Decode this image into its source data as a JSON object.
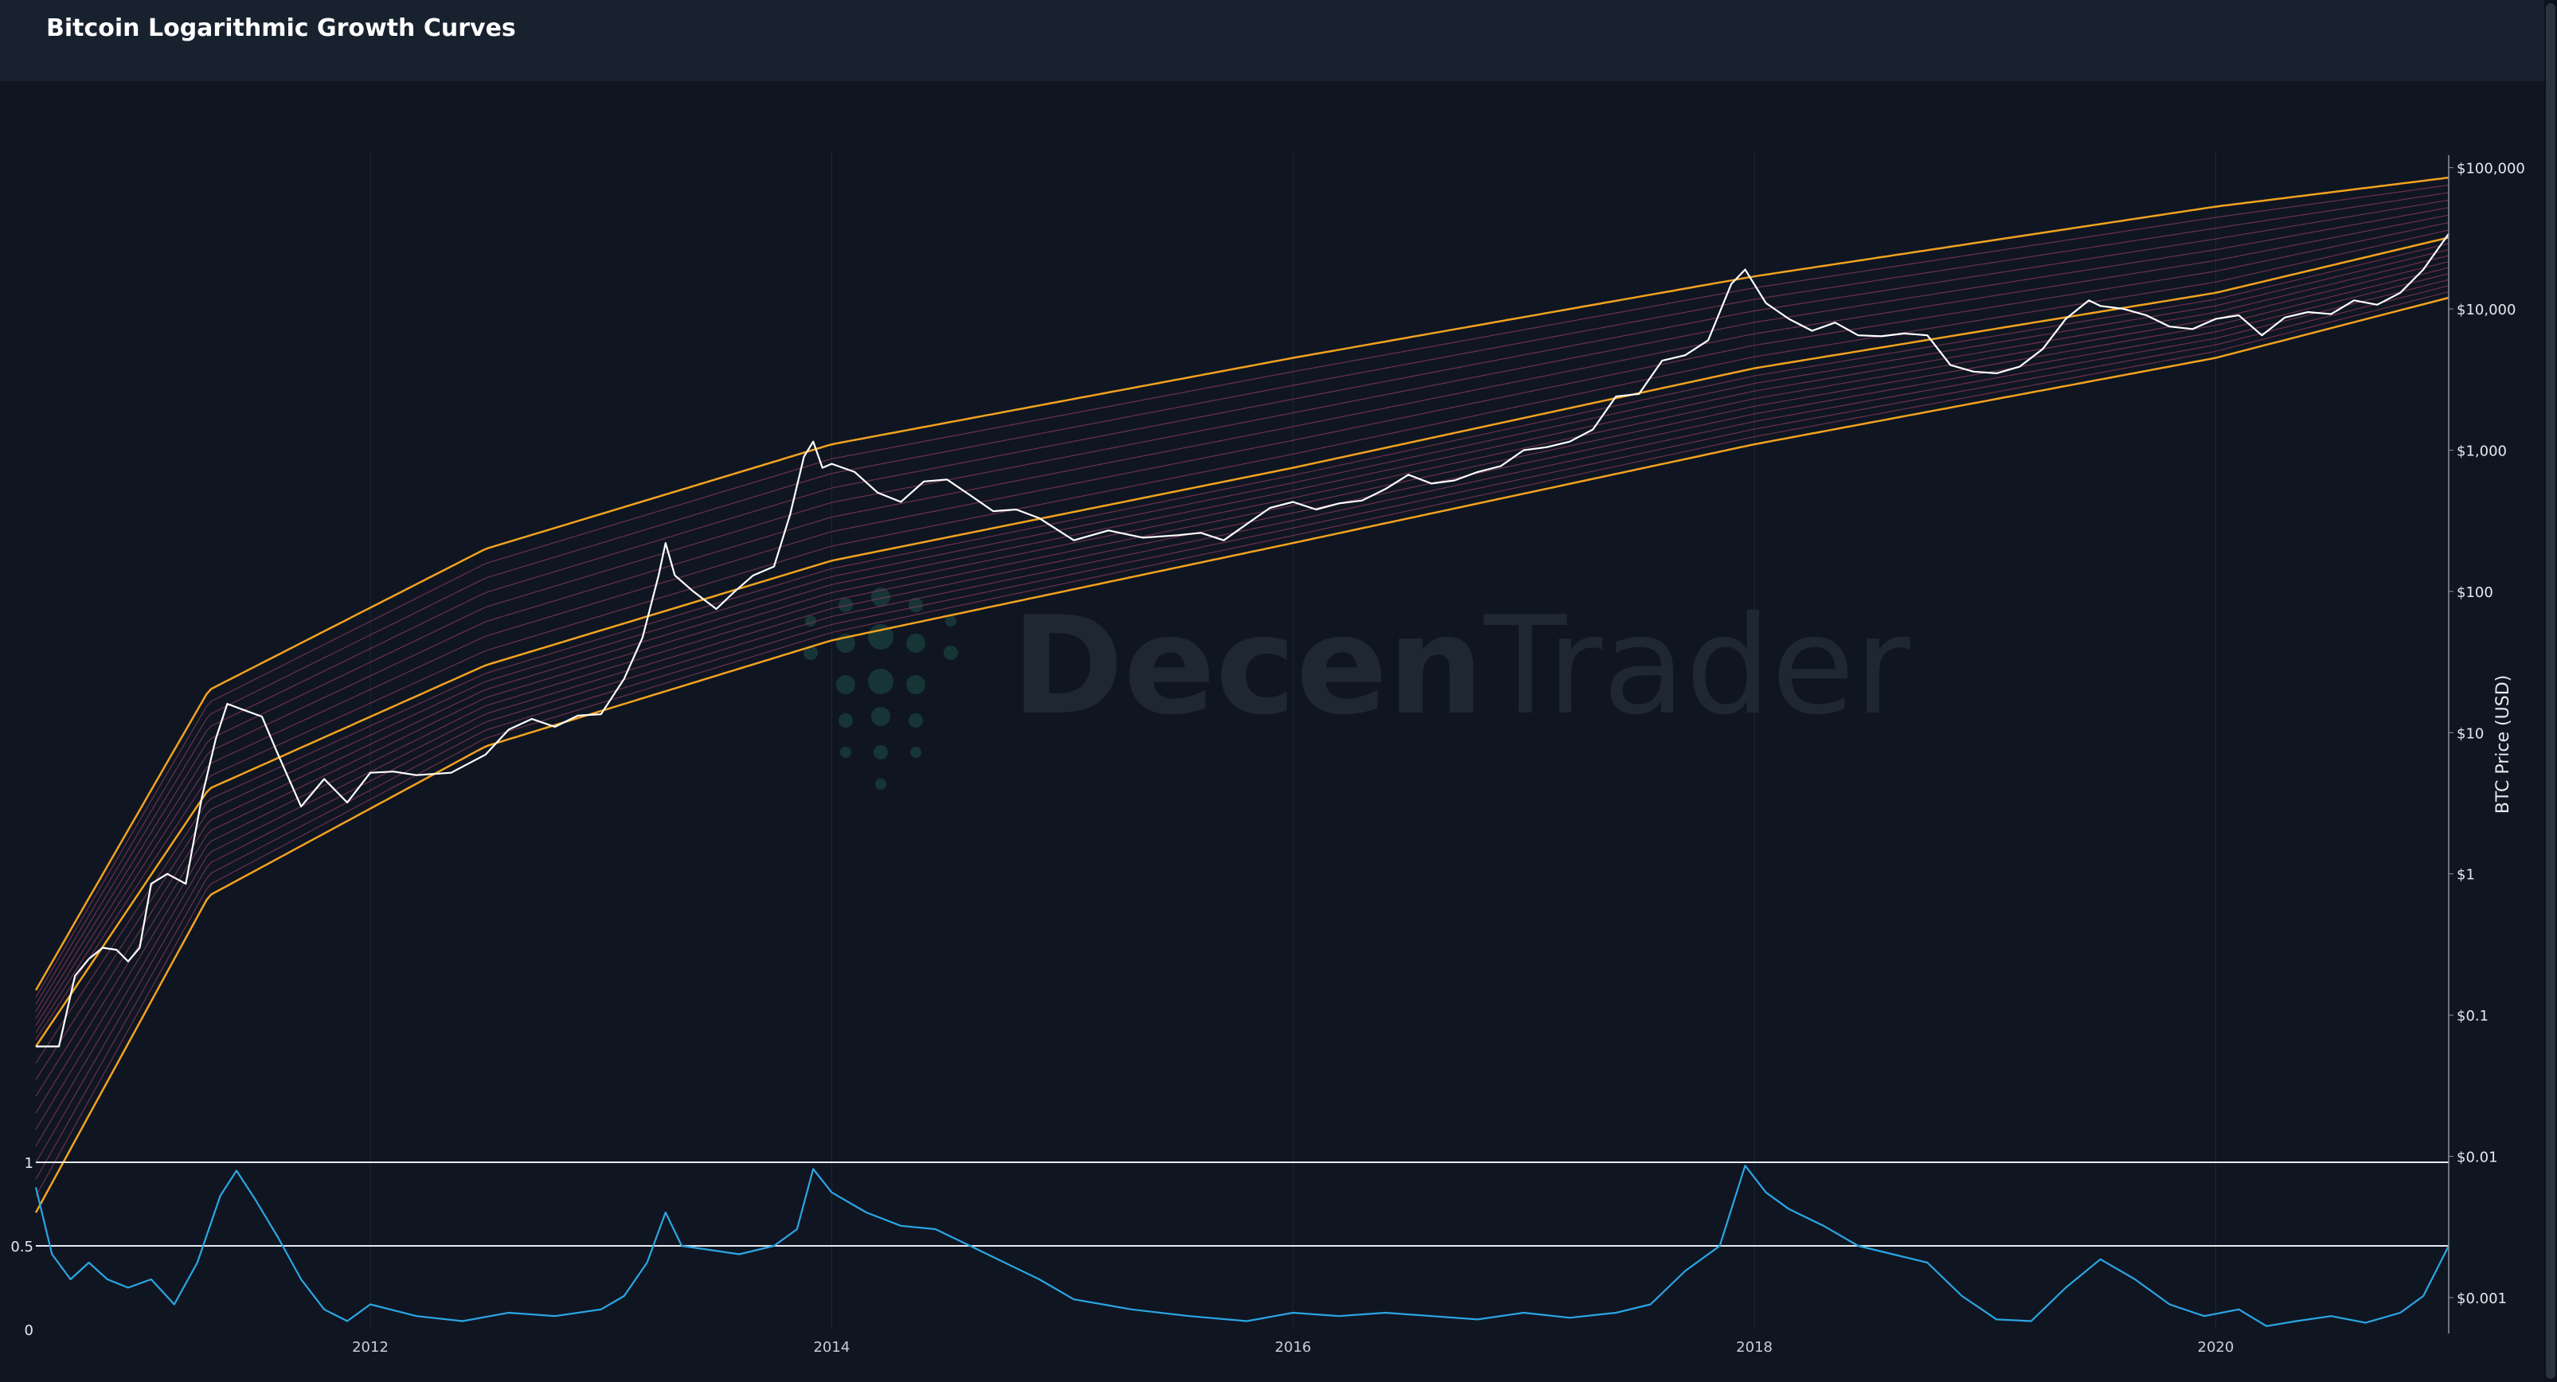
{
  "app": {
    "title": "Bitcoin Logarithmic Growth Curves"
  },
  "watermark": {
    "text_bold": "Decen",
    "text_light": "Trader"
  },
  "colors": {
    "background": "#0f1622",
    "header": "#18222f",
    "band_orange": "#f3a21f",
    "band_pink": "#8c3a5c",
    "price_line": "#ffffff",
    "oscillator": "#2ba6e4",
    "grid": "#1d2633",
    "watermark": "#1f2733",
    "watermark_dots": "#173536"
  },
  "chart_data": [
    {
      "type": "line",
      "title": "",
      "ylabel": "BTC Price (USD)",
      "yscale": "log",
      "ylim": [
        0.001,
        250000
      ],
      "x_ticks": [
        "2012",
        "2014",
        "2016",
        "2018",
        "2020"
      ],
      "x_range": [
        2010.55,
        2021.01
      ],
      "y_tick_labels": [
        "$100,000",
        "$10,000",
        "$1,000",
        "$100",
        "$10",
        "$1",
        "$0.1",
        "$0.01",
        "$0.001"
      ],
      "y_tick_values": [
        100000,
        10000,
        1000,
        100,
        10,
        1,
        0.1,
        0.01,
        0.001
      ],
      "series": [
        {
          "role": "price",
          "x": [
            2010.55,
            2010.65,
            2010.72,
            2010.78,
            2010.84,
            2010.9,
            2010.95,
            2011.0,
            2011.05,
            2011.12,
            2011.2,
            2011.27,
            2011.33,
            2011.38,
            2011.45,
            2011.53,
            2011.6,
            2011.7,
            2011.8,
            2011.9,
            2012.0,
            2012.1,
            2012.2,
            2012.35,
            2012.5,
            2012.6,
            2012.7,
            2012.8,
            2012.9,
            2013.0,
            2013.1,
            2013.18,
            2013.25,
            2013.28,
            2013.32,
            2013.4,
            2013.5,
            2013.58,
            2013.66,
            2013.75,
            2013.82,
            2013.88,
            2013.92,
            2013.96,
            2014.0,
            2014.1,
            2014.2,
            2014.3,
            2014.4,
            2014.5,
            2014.6,
            2014.7,
            2014.8,
            2014.9,
            2015.05,
            2015.2,
            2015.35,
            2015.5,
            2015.6,
            2015.7,
            2015.8,
            2015.9,
            2016.0,
            2016.1,
            2016.2,
            2016.3,
            2016.4,
            2016.5,
            2016.6,
            2016.7,
            2016.8,
            2016.9,
            2017.0,
            2017.1,
            2017.2,
            2017.3,
            2017.4,
            2017.5,
            2017.6,
            2017.7,
            2017.8,
            2017.9,
            2017.96,
            2018.05,
            2018.15,
            2018.25,
            2018.35,
            2018.45,
            2018.55,
            2018.65,
            2018.75,
            2018.85,
            2018.95,
            2019.05,
            2019.15,
            2019.25,
            2019.35,
            2019.45,
            2019.5,
            2019.6,
            2019.7,
            2019.8,
            2019.9,
            2020.0,
            2020.1,
            2020.2,
            2020.3,
            2020.4,
            2020.5,
            2020.6,
            2020.7,
            2020.8,
            2020.9,
            2021.01
          ],
          "y": [
            0.06,
            0.06,
            0.19,
            0.25,
            0.3,
            0.29,
            0.24,
            0.3,
            0.85,
            1,
            0.85,
            3.5,
            9,
            16,
            14.5,
            13,
            7,
            3,
            4.7,
            3.2,
            5.2,
            5.3,
            5,
            5.2,
            7,
            10.5,
            12.5,
            11,
            13.2,
            13.5,
            24,
            47,
            130,
            220,
            130,
            100,
            75,
            100,
            130,
            150,
            350,
            900,
            1150,
            750,
            800,
            700,
            500,
            430,
            600,
            620,
            480,
            370,
            380,
            330,
            230,
            270,
            240,
            250,
            260,
            230,
            300,
            390,
            430,
            380,
            420,
            440,
            530,
            670,
            580,
            610,
            700,
            770,
            1000,
            1050,
            1150,
            1400,
            2400,
            2500,
            4300,
            4700,
            6000,
            15000,
            19000,
            11000,
            8500,
            7000,
            8000,
            6500,
            6400,
            6700,
            6500,
            4000,
            3600,
            3500,
            3900,
            5200,
            8500,
            11500,
            10500,
            10000,
            9000,
            7500,
            7200,
            8500,
            9000,
            6500,
            8700,
            9500,
            9200,
            11500,
            10700,
            13000,
            19000,
            34000
          ]
        },
        {
          "role": "upper_band",
          "x": [
            2010.55,
            2011.3,
            2012.5,
            2014.0,
            2016.0,
            2018.0,
            2020.0,
            2021.01
          ],
          "y": [
            0.15,
            20,
            200,
            1100,
            4500,
            17000,
            53000,
            85000
          ]
        },
        {
          "role": "middle_band",
          "x": [
            2010.55,
            2011.3,
            2012.5,
            2014.0,
            2016.0,
            2018.0,
            2020.0,
            2021.01
          ],
          "y": [
            0.06,
            4,
            30,
            165,
            750,
            3800,
            13000,
            32000
          ]
        },
        {
          "role": "lower_band",
          "x": [
            2010.55,
            2011.3,
            2012.5,
            2014.0,
            2016.0,
            2018.0,
            2020.0,
            2021.01
          ],
          "y": [
            0.004,
            0.7,
            8,
            45,
            220,
            1100,
            4500,
            12000
          ]
        }
      ]
    },
    {
      "type": "line",
      "title": "",
      "ylim": [
        0,
        1
      ],
      "y_tick_labels": [
        "1",
        "0.5",
        "0"
      ],
      "y_tick_values": [
        1,
        0.5,
        0
      ],
      "series": [
        {
          "role": "oscillator",
          "x": [
            2010.55,
            2010.62,
            2010.7,
            2010.78,
            2010.86,
            2010.95,
            2011.05,
            2011.15,
            2011.25,
            2011.35,
            2011.42,
            2011.5,
            2011.6,
            2011.7,
            2011.8,
            2011.9,
            2012.0,
            2012.2,
            2012.4,
            2012.6,
            2012.8,
            2013.0,
            2013.1,
            2013.2,
            2013.28,
            2013.35,
            2013.45,
            2013.6,
            2013.75,
            2013.85,
            2013.92,
            2014.0,
            2014.15,
            2014.3,
            2014.45,
            2014.6,
            2014.75,
            2014.9,
            2015.05,
            2015.3,
            2015.55,
            2015.8,
            2016.0,
            2016.2,
            2016.4,
            2016.6,
            2016.8,
            2017.0,
            2017.2,
            2017.4,
            2017.55,
            2017.7,
            2017.85,
            2017.96,
            2018.05,
            2018.15,
            2018.3,
            2018.45,
            2018.6,
            2018.75,
            2018.9,
            2019.05,
            2019.2,
            2019.35,
            2019.5,
            2019.65,
            2019.8,
            2019.95,
            2020.1,
            2020.22,
            2020.35,
            2020.5,
            2020.65,
            2020.8,
            2020.9,
            2021.01
          ],
          "y": [
            0.85,
            0.45,
            0.3,
            0.4,
            0.3,
            0.25,
            0.3,
            0.15,
            0.4,
            0.8,
            0.95,
            0.78,
            0.55,
            0.3,
            0.12,
            0.05,
            0.15,
            0.08,
            0.05,
            0.1,
            0.08,
            0.12,
            0.2,
            0.4,
            0.7,
            0.5,
            0.48,
            0.45,
            0.5,
            0.6,
            0.96,
            0.82,
            0.7,
            0.62,
            0.6,
            0.5,
            0.4,
            0.3,
            0.18,
            0.12,
            0.08,
            0.05,
            0.1,
            0.08,
            0.1,
            0.08,
            0.06,
            0.1,
            0.07,
            0.1,
            0.15,
            0.35,
            0.5,
            0.98,
            0.82,
            0.72,
            0.62,
            0.5,
            0.45,
            0.4,
            0.2,
            0.06,
            0.05,
            0.25,
            0.42,
            0.3,
            0.15,
            0.08,
            0.12,
            0.02,
            0.05,
            0.08,
            0.04,
            0.1,
            0.2,
            0.5
          ]
        }
      ]
    }
  ]
}
